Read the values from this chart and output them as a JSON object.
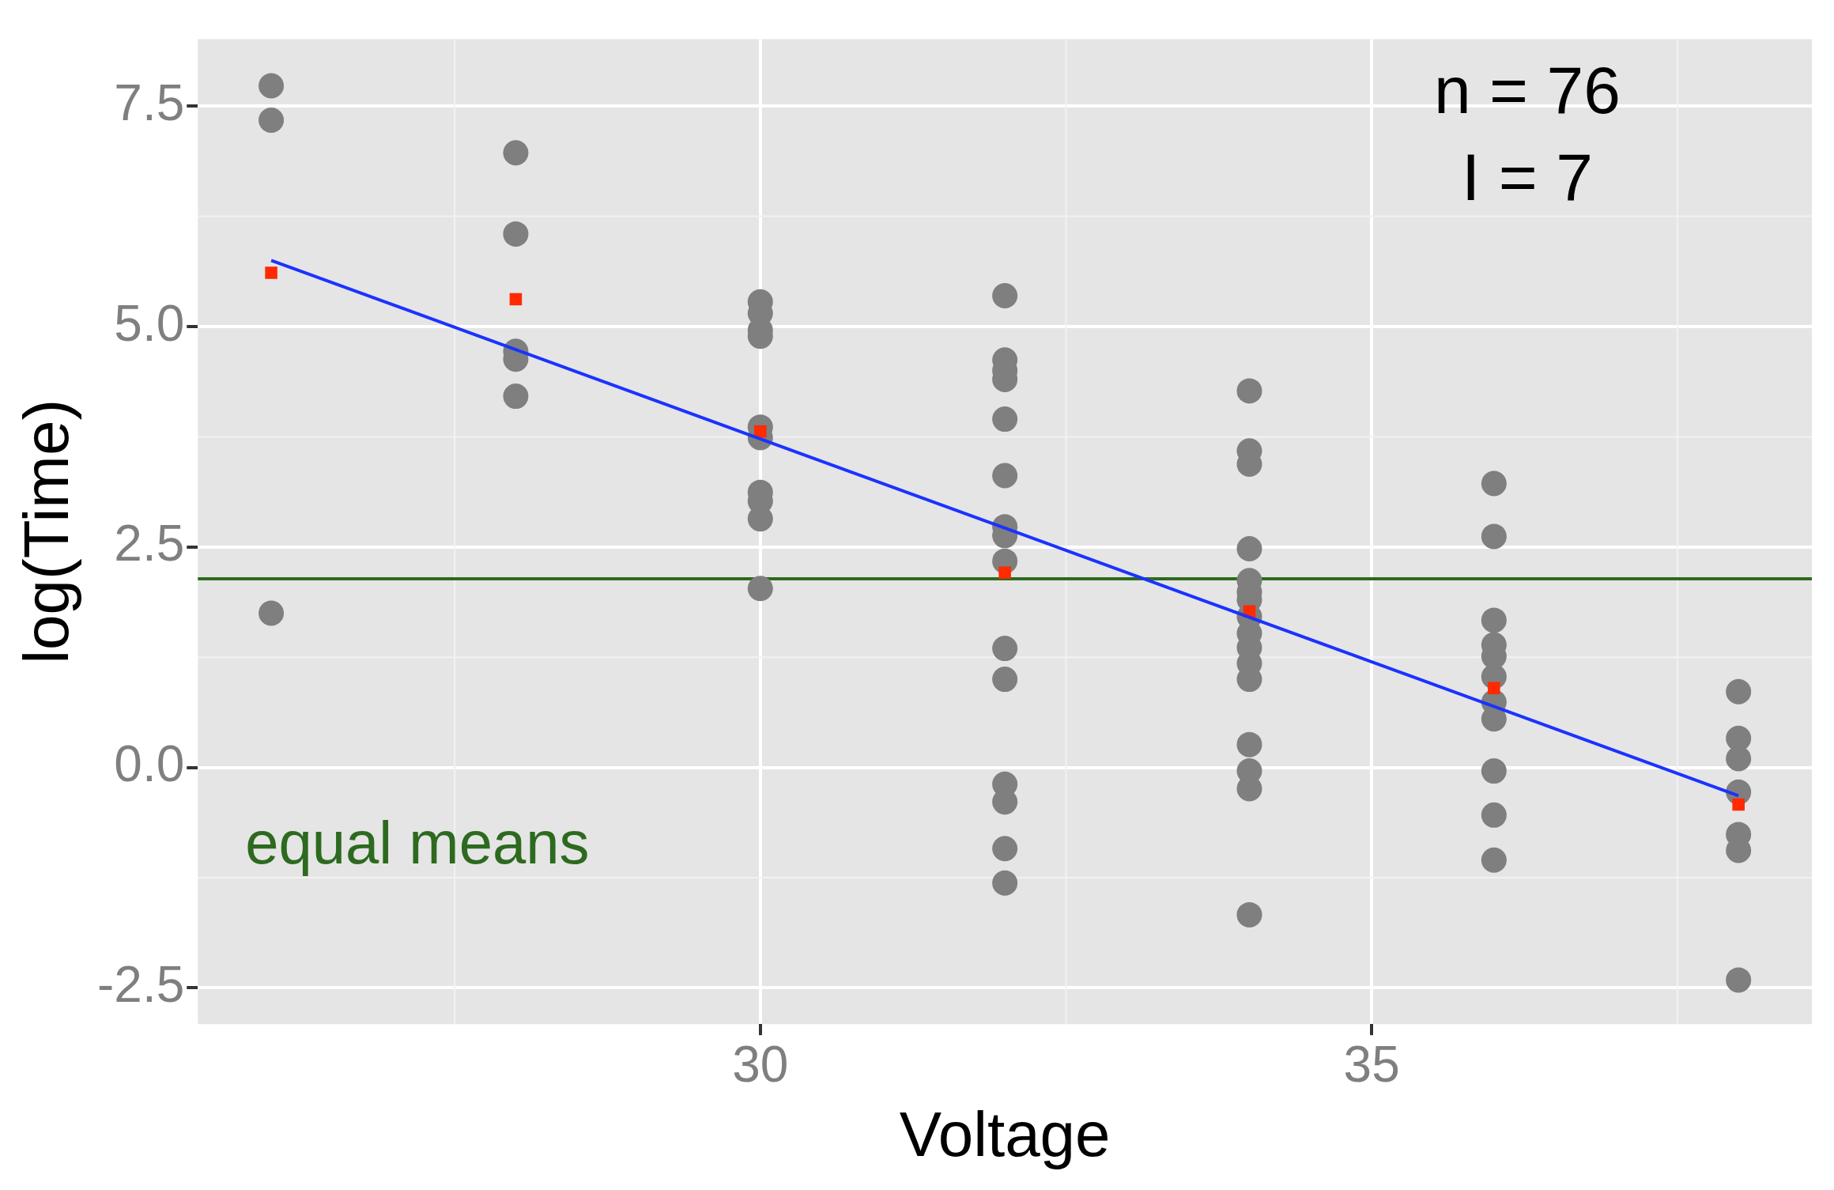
{
  "chart_data": {
    "type": "scatter",
    "xlabel": "Voltage",
    "ylabel": "log(Time)",
    "xlim": [
      25.4,
      38.6
    ],
    "xticks": [
      30,
      35
    ],
    "ylim": [
      -2.91,
      8.26
    ],
    "yticks": [
      {
        "value": -2.5,
        "label": "-2.5"
      },
      {
        "value": 0,
        "label": "0.0"
      },
      {
        "value": 2.5,
        "label": "2.5"
      },
      {
        "value": 5,
        "label": "5.0"
      },
      {
        "value": 7.5,
        "label": "7.5"
      }
    ],
    "grid": true,
    "legend": false,
    "marker": "circle",
    "series": [
      {
        "color": "#7f7f7f",
        "x": [
          26,
          26,
          26,
          28,
          28,
          28,
          28,
          28,
          30,
          30,
          30,
          30,
          30,
          30,
          30,
          30,
          30,
          30,
          32,
          32,
          32,
          32,
          32,
          32,
          32,
          32,
          32,
          32,
          32,
          32,
          32,
          32,
          32,
          34,
          34,
          34,
          34,
          34,
          34,
          34,
          34,
          34,
          34,
          34,
          34,
          34,
          34,
          34,
          34,
          36,
          36,
          36,
          36,
          36,
          36,
          36,
          36,
          36,
          36,
          36,
          38,
          38,
          38,
          38,
          38,
          38,
          38
        ],
        "values": [
          7.73,
          7.34,
          1.75,
          6.97,
          6.05,
          4.72,
          4.63,
          4.21,
          5.28,
          5.15,
          4.96,
          4.89,
          3.86,
          3.74,
          3.12,
          3.02,
          2.82,
          2.03,
          5.35,
          4.62,
          4.5,
          4.4,
          3.95,
          3.31,
          2.73,
          2.63,
          2.34,
          1.35,
          1.0,
          -0.19,
          -0.39,
          -0.92,
          -1.31,
          4.27,
          3.59,
          3.44,
          2.48,
          2.12,
          1.99,
          1.9,
          1.71,
          1.52,
          1.36,
          1.18,
          1.0,
          0.26,
          -0.04,
          -0.24,
          -1.67,
          3.22,
          2.62,
          1.67,
          1.39,
          1.26,
          1.03,
          0.74,
          0.55,
          -0.04,
          -0.54,
          -1.05,
          0.86,
          0.33,
          0.1,
          -0.28,
          -0.76,
          -0.94,
          -2.41
        ]
      },
      {
        "color": "#ff2a00",
        "marker": "square",
        "x": [
          26,
          28,
          30,
          32,
          34,
          36,
          38
        ],
        "values": [
          5.61,
          5.31,
          3.81,
          2.21,
          1.77,
          0.9,
          -0.42
        ]
      },
      {
        "type": "line",
        "color": "#1a33ff",
        "marker": "none",
        "x": [
          26,
          38
        ],
        "values": [
          5.75,
          -0.32
        ]
      }
    ],
    "ref_lines": [
      {
        "axis": "y",
        "value": 2.14,
        "label": "equal means",
        "color": "#2d6a1f"
      }
    ],
    "annotations": [
      "n = 76",
      "I = 7"
    ]
  }
}
